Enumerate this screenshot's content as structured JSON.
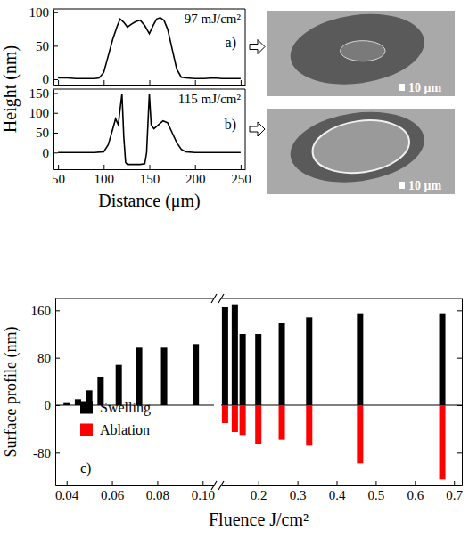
{
  "chart_data": [
    {
      "type": "line",
      "panel": "a)",
      "annotation": "97 mJ/cm²",
      "ylabel": "Height (nm)",
      "scale_bar": "10 μm",
      "color": "#000000",
      "x": [
        50,
        60,
        70,
        80,
        90,
        95,
        100,
        105,
        110,
        115,
        118,
        122,
        126,
        130,
        135,
        140,
        145,
        150,
        154,
        158,
        162,
        166,
        170,
        175,
        180,
        185,
        190,
        200,
        210,
        220,
        230,
        240,
        250
      ],
      "values": [
        2,
        2,
        1,
        1,
        1,
        2,
        10,
        35,
        60,
        80,
        90,
        85,
        78,
        82,
        86,
        88,
        80,
        68,
        80,
        90,
        92,
        88,
        75,
        45,
        15,
        3,
        2,
        1,
        1,
        2,
        1,
        1,
        1
      ],
      "xlim": [
        45,
        255
      ],
      "ylim": [
        -8,
        105
      ],
      "xticks": [
        50,
        100,
        150,
        200,
        250
      ],
      "yticks": [
        0,
        50,
        100
      ],
      "tick_labels": "y"
    },
    {
      "type": "line",
      "panel": "b)",
      "annotation": "115 mJ/cm²",
      "xlabel": "Distance (μm)",
      "scale_bar": "10 μm",
      "color": "#000000",
      "x": [
        50,
        60,
        70,
        80,
        90,
        100,
        105,
        110,
        113,
        116,
        118,
        120,
        122,
        124,
        126,
        130,
        135,
        140,
        145,
        147,
        149,
        150,
        152,
        155,
        160,
        165,
        170,
        175,
        180,
        185,
        190,
        200,
        210,
        220,
        230,
        240,
        250
      ],
      "values": [
        0,
        0,
        0,
        0,
        0,
        2,
        20,
        60,
        85,
        70,
        110,
        148,
        40,
        -25,
        -30,
        -30,
        -30,
        -30,
        -28,
        0,
        100,
        148,
        70,
        60,
        70,
        80,
        75,
        50,
        25,
        8,
        2,
        0,
        0,
        0,
        0,
        0,
        0
      ],
      "xlim": [
        45,
        255
      ],
      "ylim": [
        -42,
        160
      ],
      "xticks": [
        50,
        100,
        150,
        200,
        250
      ],
      "yticks": [
        0,
        50,
        100,
        150
      ]
    },
    {
      "type": "bar",
      "panel": "c)",
      "ylabel": "Surface profile (nm)",
      "xlabel": "Fluence J/cm²",
      "legend": "lower left",
      "x": [
        0.04,
        0.045,
        0.05,
        0.055,
        0.063,
        0.072,
        0.083,
        0.097
      ],
      "series": [
        {
          "name": "Swelling",
          "color": "#000000",
          "values": [
            5,
            10,
            25,
            48,
            68,
            97,
            97,
            103
          ]
        },
        {
          "name": "Ablation",
          "color": "#ff0000",
          "values": [
            null,
            null,
            null,
            null,
            null,
            null,
            null,
            null
          ]
        }
      ],
      "xlim": [
        0.035,
        0.105
      ],
      "ylim": [
        -135,
        180
      ],
      "xticks": [
        0.04,
        0.06,
        0.08,
        {
          "value": 0.1,
          "label": "0.10"
        }
      ],
      "yticks": [
        -80,
        0,
        80,
        160
      ]
    },
    {
      "type": "bar",
      "x": [
        0.115,
        0.14,
        0.16,
        0.2,
        0.26,
        0.33,
        0.46,
        0.67
      ],
      "series": [
        {
          "color": "#000000",
          "values": [
            165,
            170,
            120,
            120,
            138,
            148,
            155,
            155
          ]
        },
        {
          "color": "#ff0000",
          "values": [
            -30,
            -45,
            -50,
            -65,
            -58,
            -68,
            -98,
            -125
          ]
        }
      ],
      "xlim": [
        0.105,
        0.72
      ],
      "ylim": [
        -135,
        180
      ],
      "xticks": [
        0.2,
        0.3,
        0.4,
        0.5,
        0.6,
        0.7
      ],
      "yticks": [
        -80,
        0,
        80,
        160
      ],
      "tick_labels": "x"
    }
  ]
}
